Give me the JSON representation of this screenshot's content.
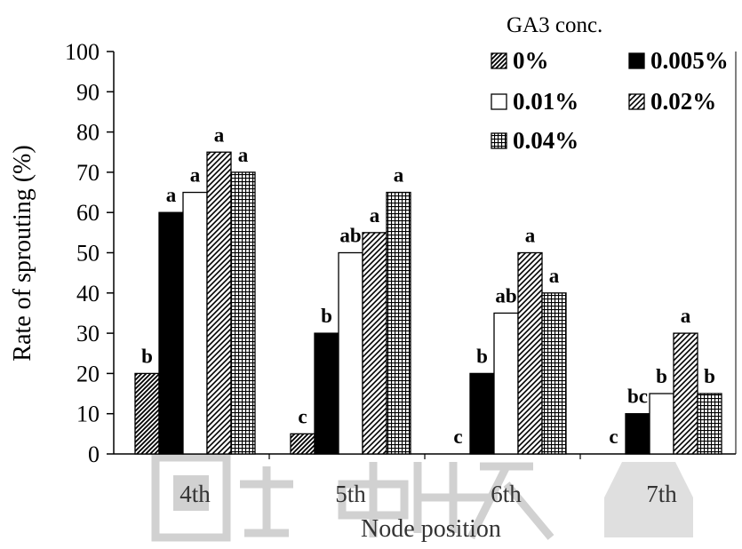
{
  "chart_data": {
    "type": "bar",
    "title": "",
    "xlabel": "Node position",
    "ylabel": "Rate of sprouting (%)",
    "ylim": [
      0,
      100
    ],
    "yticks": [
      "0",
      "10",
      "20",
      "30",
      "40",
      "50",
      "60",
      "70",
      "80",
      "90",
      "100"
    ],
    "categories": [
      "4th",
      "5th",
      "6th",
      "7th"
    ],
    "legend_title": "GA3 conc.",
    "legend_placement": "top-right",
    "grid": false,
    "series": [
      {
        "name": "0%",
        "pattern": "diag-dense",
        "values": [
          20,
          5,
          0,
          0
        ],
        "letters": [
          "b",
          "c",
          "c",
          "c"
        ]
      },
      {
        "name": "0.005%",
        "pattern": "solid-black",
        "values": [
          60,
          30,
          20,
          10
        ],
        "letters": [
          "a",
          "b",
          "b",
          "bc"
        ]
      },
      {
        "name": "0.01%",
        "pattern": "white",
        "values": [
          65,
          50,
          35,
          15
        ],
        "letters": [
          "a",
          "ab",
          "ab",
          "b"
        ]
      },
      {
        "name": "0.02%",
        "pattern": "diag-sparse",
        "values": [
          75,
          55,
          50,
          30
        ],
        "letters": [
          "a",
          "a",
          "a",
          "a"
        ]
      },
      {
        "name": "0.04%",
        "pattern": "grid",
        "values": [
          70,
          65,
          40,
          15
        ],
        "letters": [
          "a",
          "a",
          "a",
          "b"
        ]
      }
    ]
  }
}
